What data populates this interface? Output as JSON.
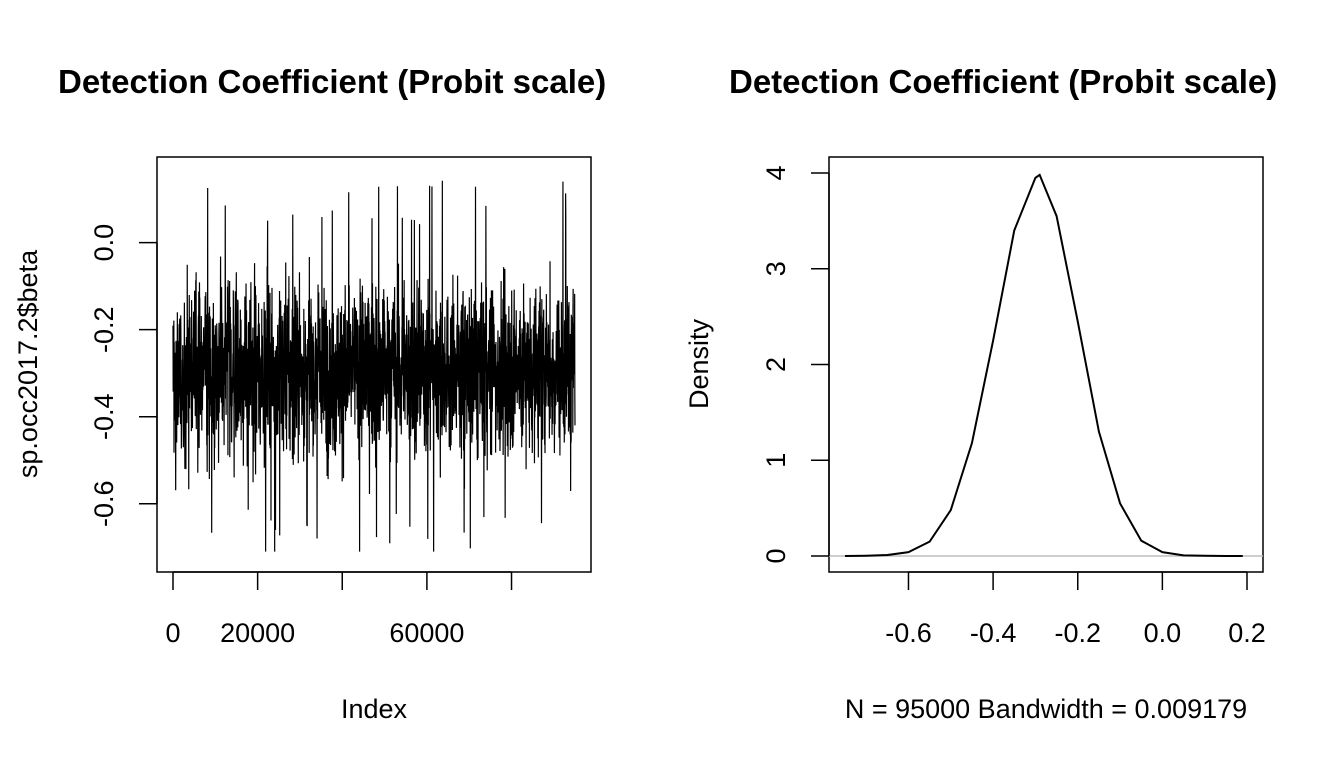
{
  "chart_data": [
    {
      "type": "line",
      "title": "Detection Coefficient (Probit scale)",
      "xlabel": "Index",
      "ylabel": "sp.occ2017.2$beta",
      "xlim": [
        0,
        95000
      ],
      "ylim": [
        -0.72,
        0.16
      ],
      "x_ticks": [
        0,
        20000,
        40000,
        60000,
        80000
      ],
      "x_tick_labels": [
        "0",
        "20000",
        "",
        "60000",
        ""
      ],
      "y_ticks": [
        0.0,
        -0.2,
        -0.4,
        -0.6
      ],
      "y_tick_labels": [
        "0.0",
        "-0.2",
        "-0.4",
        "-0.6"
      ],
      "series": [
        {
          "n": 95000,
          "mean": -0.29,
          "sd": 0.1,
          "min": -0.71,
          "max": 0.16,
          "color": "#000000"
        }
      ]
    },
    {
      "type": "line",
      "title": "Detection Coefficient (Probit scale)",
      "xlabel": "N = 95000   Bandwidth = 0.009179",
      "ylabel": "Density",
      "xlim": [
        -0.75,
        0.2
      ],
      "ylim": [
        0,
        4
      ],
      "x_ticks": [
        -0.6,
        -0.4,
        -0.2,
        0.0,
        0.2
      ],
      "x_tick_labels": [
        "-0.6",
        "-0.4",
        "-0.2",
        "0.0",
        "0.2"
      ],
      "y_ticks": [
        0,
        1,
        2,
        3,
        4
      ],
      "y_tick_labels": [
        "0",
        "1",
        "2",
        "3",
        "4"
      ],
      "baseline_color": "#bebebe",
      "series": [
        {
          "x": [
            -0.75,
            -0.7,
            -0.65,
            -0.6,
            -0.55,
            -0.5,
            -0.45,
            -0.4,
            -0.35,
            -0.3,
            -0.29,
            -0.25,
            -0.2,
            -0.15,
            -0.1,
            -0.05,
            0.0,
            0.05,
            0.1,
            0.15,
            0.19
          ],
          "y": [
            0.0,
            0.003,
            0.01,
            0.04,
            0.15,
            0.48,
            1.18,
            2.25,
            3.4,
            3.95,
            3.98,
            3.55,
            2.45,
            1.3,
            0.55,
            0.16,
            0.04,
            0.007,
            0.002,
            0.0,
            0.0
          ],
          "color": "#000000"
        }
      ]
    }
  ]
}
